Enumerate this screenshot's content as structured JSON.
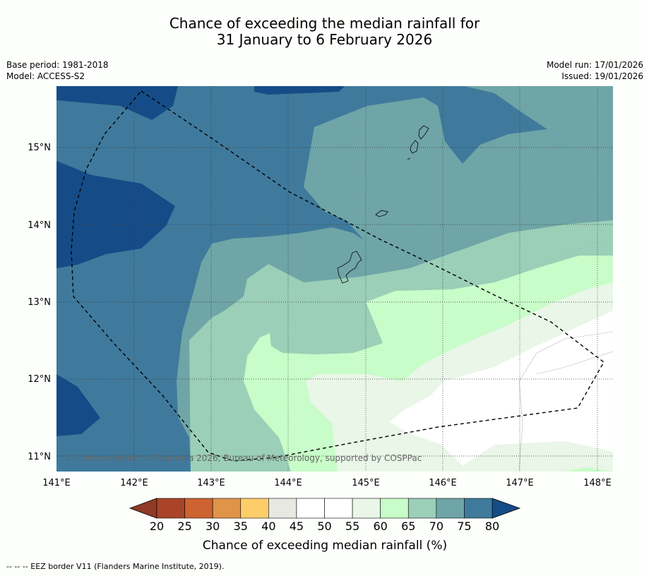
{
  "title_line1": "Chance of exceeding the median rainfall for",
  "title_line2": "31 January to 6 February 2026",
  "meta": {
    "base_period": "Base period: 1981-2018",
    "model": "Model: ACCESS-S2",
    "model_run": "Model run: 17/01/2026",
    "issued": "Issued: 19/01/2026"
  },
  "copyright": "© Commonwealth of Australia 2026, Bureau of Meteorology, supported by COSPPac",
  "x_ticks": [
    "141°E",
    "142°E",
    "143°E",
    "144°E",
    "145°E",
    "146°E",
    "147°E",
    "148°E"
  ],
  "y_ticks": [
    "15°N",
    "14°N",
    "13°N",
    "12°N",
    "11°N"
  ],
  "colorbar": {
    "labels": [
      "20",
      "25",
      "30",
      "35",
      "40",
      "45",
      "50",
      "55",
      "60",
      "65",
      "70",
      "75",
      "80"
    ],
    "colors": [
      "#a94428",
      "#cd6330",
      "#e0944a",
      "#fdcd6a",
      "#e8e8e3",
      "#ffffff",
      "#ffffff",
      "#e9f6e8",
      "#c8fcc8",
      "#9bcfb7",
      "#6fa5a7",
      "#3f7a9c"
    ],
    "low_color": "#903a25",
    "high_color": "#154c87",
    "title": "Chance of exceeding median rainfall (%)"
  },
  "footer": "--  --  -- EEZ border V11 (Flanders Marine Institute, 2019).",
  "map_colors": {
    "c75_80": "#3f7a9c",
    "c80": "#154c87",
    "c70_75": "#6fa5a7",
    "c65_70": "#9bcfb7",
    "c60_65": "#c8fcc8",
    "c55_60": "#e9f6e8",
    "c50_55": "#ffffff"
  }
}
